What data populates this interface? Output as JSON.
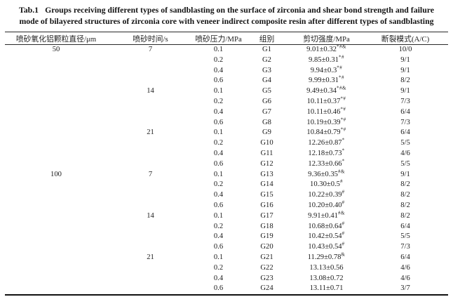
{
  "title": {
    "tab_label": "Tab.1",
    "line1": "Groups receiving different types of sandblasting on the surface of zirconia and shear bond strength and failure",
    "line2": "mode of bilayered structures of zirconia core with veneer indirect composite resin after different types of sandblasting"
  },
  "table": {
    "headers": [
      "喷砂氧化铝颗粒直径/μm",
      "喷砂时间/s",
      "喷砂压力/MPa",
      "组别",
      "剪切强度/MPa",
      "断裂模式(A/C)"
    ],
    "rows": [
      {
        "diameter": "50",
        "time": "7",
        "pressure": "0.1",
        "group": "G1",
        "strength": "9.01±0.32",
        "sup": "*#&",
        "failure": "10/0"
      },
      {
        "diameter": "",
        "time": "",
        "pressure": "0.2",
        "group": "G2",
        "strength": "9.85±0.31",
        "sup": "*#",
        "failure": "9/1"
      },
      {
        "diameter": "",
        "time": "",
        "pressure": "0.4",
        "group": "G3",
        "strength": "9.94±0.3",
        "sup": "*#",
        "failure": "9/1"
      },
      {
        "diameter": "",
        "time": "",
        "pressure": "0.6",
        "group": "G4",
        "strength": "9.99±0.31",
        "sup": "*#",
        "failure": "8/2"
      },
      {
        "diameter": "",
        "time": "14",
        "pressure": "0.1",
        "group": "G5",
        "strength": "9.49±0.34",
        "sup": "*#&",
        "failure": "9/1"
      },
      {
        "diameter": "",
        "time": "",
        "pressure": "0.2",
        "group": "G6",
        "strength": "10.11±0.37",
        "sup": "*#",
        "failure": "7/3"
      },
      {
        "diameter": "",
        "time": "",
        "pressure": "0.4",
        "group": "G7",
        "strength": "10.11±0.46",
        "sup": "*#",
        "failure": "6/4"
      },
      {
        "diameter": "",
        "time": "",
        "pressure": "0.6",
        "group": "G8",
        "strength": "10.19±0.39",
        "sup": "*#",
        "failure": "7/3"
      },
      {
        "diameter": "",
        "time": "21",
        "pressure": "0.1",
        "group": "G9",
        "strength": "10.84±0.79",
        "sup": "*#",
        "failure": "6/4"
      },
      {
        "diameter": "",
        "time": "",
        "pressure": "0.2",
        "group": "G10",
        "strength": "12.26±0.87",
        "sup": "*",
        "failure": "5/5"
      },
      {
        "diameter": "",
        "time": "",
        "pressure": "0.4",
        "group": "G11",
        "strength": "12.18±0.73",
        "sup": "*",
        "failure": "4/6"
      },
      {
        "diameter": "",
        "time": "",
        "pressure": "0.6",
        "group": "G12",
        "strength": "12.33±0.66",
        "sup": "*",
        "failure": "5/5"
      },
      {
        "diameter": "100",
        "time": "7",
        "pressure": "0.1",
        "group": "G13",
        "strength": "9.36±0.35",
        "sup": "#&",
        "failure": "9/1"
      },
      {
        "diameter": "",
        "time": "",
        "pressure": "0.2",
        "group": "G14",
        "strength": "10.30±0.5",
        "sup": "#",
        "failure": "8/2"
      },
      {
        "diameter": "",
        "time": "",
        "pressure": "0.4",
        "group": "G15",
        "strength": "10.22±0.39",
        "sup": "#",
        "failure": "8/2"
      },
      {
        "diameter": "",
        "time": "",
        "pressure": "0.6",
        "group": "G16",
        "strength": "10.20±0.40",
        "sup": "#",
        "failure": "8/2"
      },
      {
        "diameter": "",
        "time": "14",
        "pressure": "0.1",
        "group": "G17",
        "strength": "9.91±0.41",
        "sup": "#&",
        "failure": "8/2"
      },
      {
        "diameter": "",
        "time": "",
        "pressure": "0.2",
        "group": "G18",
        "strength": "10.68±0.64",
        "sup": "#",
        "failure": "6/4"
      },
      {
        "diameter": "",
        "time": "",
        "pressure": "0.4",
        "group": "G19",
        "strength": "10.42±0.54",
        "sup": "#",
        "failure": "5/5"
      },
      {
        "diameter": "",
        "time": "",
        "pressure": "0.6",
        "group": "G20",
        "strength": "10.43±0.54",
        "sup": "#",
        "failure": "7/3"
      },
      {
        "diameter": "",
        "time": "21",
        "pressure": "0.1",
        "group": "G21",
        "strength": "11.29±0.78",
        "sup": "&",
        "failure": "6/4"
      },
      {
        "diameter": "",
        "time": "",
        "pressure": "0.2",
        "group": "G22",
        "strength": "13.13±0.56",
        "sup": "",
        "failure": "4/6"
      },
      {
        "diameter": "",
        "time": "",
        "pressure": "0.4",
        "group": "G23",
        "strength": "13.08±0.72",
        "sup": "",
        "failure": "4/6"
      },
      {
        "diameter": "",
        "time": "",
        "pressure": "0.6",
        "group": "G24",
        "strength": "13.11±0.71",
        "sup": "",
        "failure": "3/7"
      }
    ]
  },
  "colors": {
    "background": "#ffffff",
    "text": "#1a1a1a",
    "rule": "#111111"
  }
}
